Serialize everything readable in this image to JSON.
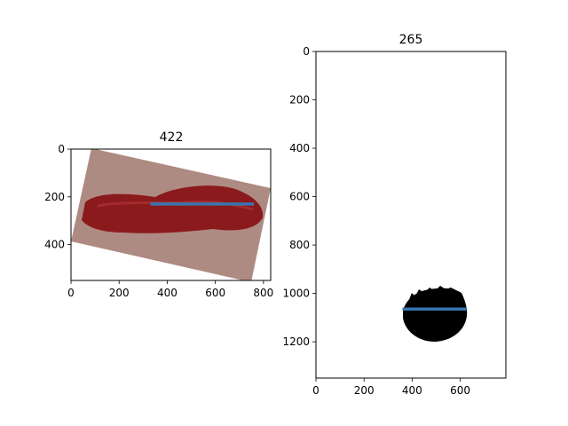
{
  "chart_data": [
    {
      "type": "image",
      "title": "422",
      "xlim": [
        0,
        830
      ],
      "ylim": [
        550,
        0
      ],
      "xticks": [
        0,
        200,
        400,
        600,
        800
      ],
      "xtick_labels": [
        "0",
        "200",
        "400",
        "600",
        "800"
      ],
      "yticks": [
        0,
        200,
        400
      ],
      "ytick_labels": [
        "0",
        "200",
        "400"
      ],
      "image_description": "rotated photo of red meat on skin-tone background",
      "line": {
        "x": [
          330,
          760
        ],
        "y": [
          230,
          230
        ],
        "color": "#3a75b0"
      },
      "colors": {
        "background_rect": "#b08e84",
        "meat": "#8b1a1d"
      }
    },
    {
      "type": "image",
      "title": "265",
      "xlim": [
        0,
        790
      ],
      "ylim": [
        1350,
        0
      ],
      "xticks": [
        0,
        200,
        400,
        600
      ],
      "xtick_labels": [
        "0",
        "200",
        "400",
        "600"
      ],
      "yticks": [
        0,
        200,
        400,
        600,
        800,
        1000,
        1200
      ],
      "ytick_labels": [
        "0",
        "200",
        "400",
        "600",
        "800",
        "1000",
        "1200"
      ],
      "image_description": "binary mask with black blob",
      "line": {
        "x": [
          360,
          625
        ],
        "y": [
          1065,
          1065
        ],
        "color": "#3a75b0"
      },
      "blob": {
        "cx": 490,
        "cy": 1075,
        "r": 130
      }
    }
  ]
}
